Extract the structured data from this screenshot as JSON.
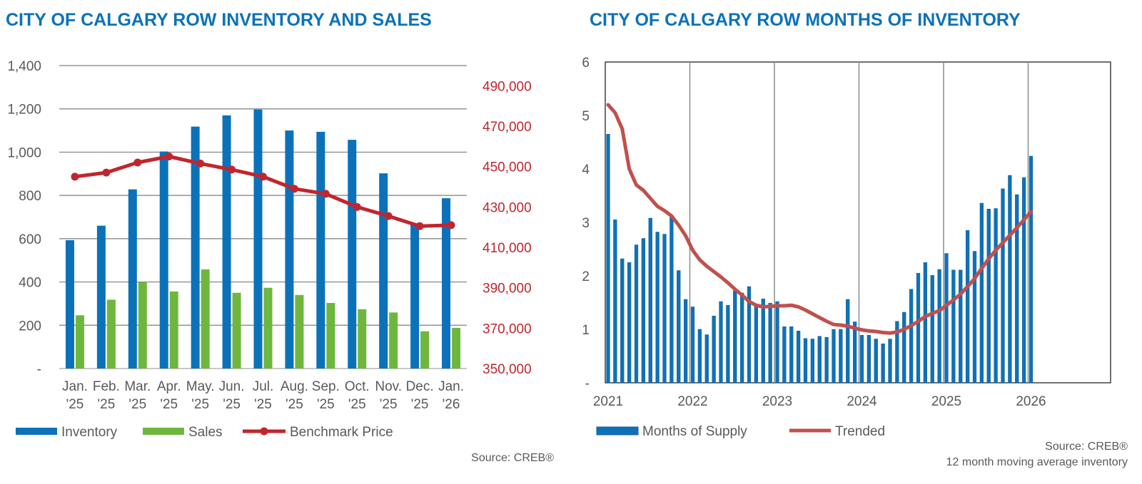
{
  "chart_data": [
    {
      "type": "bar",
      "title": "CITY OF CALGARY ROW INVENTORY AND SALES",
      "categories": [
        [
          "Jan.",
          "'25"
        ],
        [
          "Feb.",
          "'25"
        ],
        [
          "Mar.",
          "'25"
        ],
        [
          "Apr.",
          "'25"
        ],
        [
          "May.",
          "'25"
        ],
        [
          "Jun.",
          "'25"
        ],
        [
          "Jul.",
          "'25"
        ],
        [
          "Aug.",
          "'25"
        ],
        [
          "Sep.",
          "'25"
        ],
        [
          "Oct.",
          "'25"
        ],
        [
          "Nov.",
          "'25"
        ],
        [
          "Dec.",
          "'25"
        ],
        [
          "Jan.",
          "'26"
        ]
      ],
      "y_left": {
        "ylim": [
          0,
          1400
        ],
        "ticks": [
          0,
          200,
          400,
          600,
          800,
          1000,
          1200,
          1400
        ],
        "tick_labels": [
          "-",
          "200",
          "400",
          "600",
          "800",
          "1,000",
          "1,200",
          "1,400"
        ]
      },
      "y_right": {
        "ylim": [
          350000,
          500000
        ],
        "ticks": [
          350000,
          370000,
          390000,
          410000,
          430000,
          450000,
          470000,
          490000
        ],
        "tick_labels": [
          "350,000",
          "370,000",
          "390,000",
          "410,000",
          "430,000",
          "450,000",
          "470,000",
          "490,000"
        ]
      },
      "grid": true,
      "legend_position": "bottom-left",
      "series": [
        {
          "name": "Inventory",
          "kind": "bar",
          "axis": "left",
          "color": "#0b72b9",
          "values": [
            593,
            660,
            828,
            1003,
            1118,
            1170,
            1197,
            1100,
            1094,
            1057,
            902,
            665,
            787
          ]
        },
        {
          "name": "Sales",
          "kind": "bar",
          "axis": "left",
          "color": "#6fb63f",
          "values": [
            246,
            318,
            400,
            356,
            458,
            350,
            373,
            340,
            303,
            274,
            259,
            172,
            188
          ]
        },
        {
          "name": "Benchmark Price",
          "kind": "line",
          "axis": "right",
          "color": "#c0262d",
          "values": [
            445000,
            447000,
            452000,
            455000,
            451500,
            448500,
            445000,
            439000,
            436500,
            430000,
            425500,
            420500,
            421000
          ]
        }
      ],
      "source": "Source: CREB®"
    },
    {
      "type": "bar",
      "title": "CITY OF CALGARY ROW MONTHS OF INVENTORY",
      "x_start": 2021,
      "x_tick_labels": [
        "2021",
        "2022",
        "2023",
        "2024",
        "2025",
        "2026"
      ],
      "ylim": [
        0,
        6
      ],
      "y_ticks": [
        0,
        1,
        2,
        3,
        4,
        5,
        6
      ],
      "y_tick_labels": [
        "-",
        "1",
        "2",
        "3",
        "4",
        "5",
        "6"
      ],
      "grid": true,
      "legend_position": "bottom-left",
      "series": [
        {
          "name": "Months of Supply",
          "kind": "bar",
          "color": "#0b72b9",
          "values": [
            4.65,
            3.05,
            2.32,
            2.25,
            2.58,
            2.7,
            3.08,
            2.82,
            2.78,
            3.1,
            2.1,
            1.56,
            1.42,
            1.0,
            0.9,
            1.25,
            1.52,
            1.45,
            1.72,
            1.68,
            1.8,
            1.45,
            1.57,
            1.49,
            1.52,
            1.05,
            1.05,
            0.97,
            0.83,
            0.82,
            0.87,
            0.85,
            1.0,
            1.0,
            1.56,
            1.14,
            0.89,
            0.89,
            0.82,
            0.73,
            0.82,
            1.15,
            1.32,
            1.75,
            2.05,
            2.25,
            2.01,
            2.12,
            2.42,
            2.11,
            2.11,
            2.85,
            2.46,
            3.36,
            3.25,
            3.26,
            3.63,
            3.88,
            3.52,
            3.84,
            4.24
          ]
        },
        {
          "name": "Trended",
          "kind": "line",
          "color": "#c0504d",
          "values": [
            5.2,
            5.05,
            4.75,
            4.0,
            3.7,
            3.6,
            3.45,
            3.3,
            3.22,
            3.12,
            2.95,
            2.75,
            2.48,
            2.3,
            2.18,
            2.08,
            1.98,
            1.87,
            1.75,
            1.64,
            1.52,
            1.45,
            1.42,
            1.43,
            1.44,
            1.44,
            1.45,
            1.42,
            1.36,
            1.29,
            1.22,
            1.15,
            1.09,
            1.08,
            1.06,
            1.02,
            0.99,
            0.97,
            0.96,
            0.94,
            0.93,
            0.95,
            1.0,
            1.07,
            1.15,
            1.24,
            1.3,
            1.35,
            1.45,
            1.55,
            1.66,
            1.8,
            1.95,
            2.14,
            2.32,
            2.48,
            2.62,
            2.76,
            2.9,
            3.05,
            3.2
          ]
        }
      ],
      "source_lines": [
        "Source: CREB®",
        "12 month moving average inventory"
      ]
    }
  ]
}
